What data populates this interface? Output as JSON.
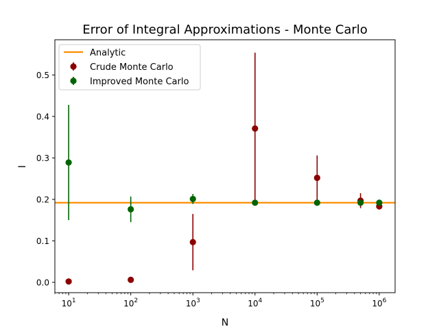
{
  "chart_data": {
    "type": "scatter",
    "title": "Error of Integral Approximations - Monte Carlo",
    "xlabel": "N",
    "ylabel": "I",
    "xscale": "log",
    "xlim": [
      6,
      1800000
    ],
    "ylim": [
      -0.025,
      0.585
    ],
    "x_ticks": [
      {
        "value": 10,
        "base": "10",
        "exp": "1"
      },
      {
        "value": 100,
        "base": "10",
        "exp": "2"
      },
      {
        "value": 1000,
        "base": "10",
        "exp": "3"
      },
      {
        "value": 10000,
        "base": "10",
        "exp": "4"
      },
      {
        "value": 100000,
        "base": "10",
        "exp": "5"
      },
      {
        "value": 1000000,
        "base": "10",
        "exp": "6"
      }
    ],
    "y_ticks": [
      "0.0",
      "0.1",
      "0.2",
      "0.3",
      "0.4",
      "0.5"
    ],
    "grid": false,
    "legend_position": "top-left",
    "analytic": {
      "name": "Analytic",
      "value": 0.192,
      "color": "#ff8c00"
    },
    "series": [
      {
        "name": "Crude Monte Carlo",
        "color": "#8b0000",
        "x": [
          10,
          100,
          1000,
          10000,
          100000,
          500000,
          1000000
        ],
        "y": [
          0.002,
          0.006,
          0.097,
          0.371,
          0.252,
          0.197,
          0.183
        ],
        "err": [
          0.0,
          0.0,
          0.068,
          0.183,
          0.054,
          0.018,
          0.006
        ]
      },
      {
        "name": "Improved Monte Carlo",
        "color": "#006400",
        "x": [
          10,
          100,
          1000,
          10000,
          100000,
          500000,
          1000000
        ],
        "y": [
          0.289,
          0.176,
          0.201,
          0.192,
          0.192,
          0.192,
          0.192
        ],
        "err": [
          0.139,
          0.031,
          0.012,
          0.002,
          0.002,
          0.004,
          0.002
        ]
      }
    ]
  }
}
